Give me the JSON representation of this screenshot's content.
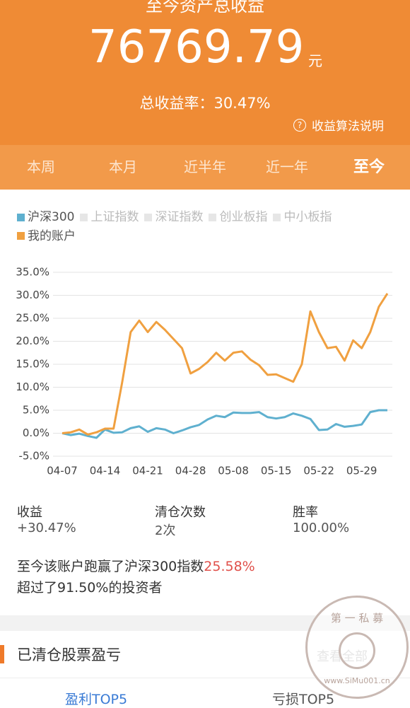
{
  "header": {
    "title": "至今资产总收益",
    "amount": "76769.79",
    "unit": "元",
    "rate": "总收益率：30.47%",
    "help": "收益算法说明"
  },
  "tabs": [
    "本周",
    "本月",
    "近半年",
    "近一年",
    "至今"
  ],
  "chart_data": {
    "type": "line",
    "inactive_series": [
      {
        "name": "上证指数",
        "color": "#e6e6e6"
      },
      {
        "name": "深证指数",
        "color": "#e6e6e6"
      },
      {
        "name": "创业板指",
        "color": "#e6e6e6"
      },
      {
        "name": "中小板指",
        "color": "#e6e6e6"
      }
    ],
    "categories": [
      "04-07",
      null,
      null,
      null,
      null,
      "04-14",
      null,
      null,
      null,
      null,
      "04-21",
      null,
      null,
      null,
      null,
      "04-28",
      null,
      null,
      null,
      null,
      "05-08",
      null,
      null,
      null,
      null,
      "05-15",
      null,
      null,
      null,
      null,
      "05-22",
      null,
      null,
      null,
      null,
      "05-29",
      null,
      null,
      null
    ],
    "series": [
      {
        "name": "沪深300",
        "color": "#5fb0cf",
        "values": [
          0,
          -0.4,
          -0.1,
          -0.6,
          -1.0,
          0.8,
          0.1,
          0.2,
          1.1,
          1.5,
          0.3,
          1.1,
          0.8,
          0,
          0.6,
          1.3,
          1.8,
          3.0,
          3.8,
          3.5,
          4.5,
          4.4,
          4.4,
          4.6,
          3.5,
          3.2,
          3.5,
          4.3,
          3.8,
          3.1,
          0.7,
          0.8,
          2.0,
          1.4,
          1.6,
          1.9,
          4.6,
          5.0,
          5.0
        ]
      },
      {
        "name": "我的账户",
        "color": "#f0a040",
        "values": [
          0,
          0.2,
          0.8,
          -0.3,
          0.2,
          1.0,
          1.0,
          11,
          22,
          24.5,
          22,
          24.2,
          22.5,
          20.5,
          18.5,
          13,
          14,
          15.5,
          17.5,
          15.8,
          17.5,
          17.8,
          16,
          14.8,
          12.7,
          12.8,
          12,
          11.2,
          15,
          26.5,
          22,
          18.5,
          18.8,
          15.8,
          20.2,
          18.5,
          22,
          27.5,
          30.4
        ]
      }
    ],
    "ylim": [
      -5,
      35
    ],
    "yticks": [
      {
        "value": -5,
        "label": "-5.0%"
      },
      {
        "value": 0,
        "label": "0.0%"
      },
      {
        "value": 5,
        "label": "5.0%"
      },
      {
        "value": 10,
        "label": "10.0%"
      },
      {
        "value": 15,
        "label": "15.0%"
      },
      {
        "value": 20,
        "label": "20.0%"
      },
      {
        "value": 25,
        "label": "25.0%"
      },
      {
        "value": 30,
        "label": "30.0%"
      },
      {
        "value": 35,
        "label": "35.0%"
      }
    ],
    "grid": true
  },
  "stats": [
    {
      "label": "收益",
      "value": "+30.47%"
    },
    {
      "label": "清仓次数",
      "value": "2次"
    },
    {
      "label": "胜率",
      "value": "100.00%"
    }
  ],
  "summary": {
    "line1": "至今该账户跑赢了沪深300指数",
    "beat": "25.58%",
    "line2": "超过了91.50%的投资者"
  },
  "section": {
    "title": "已清仓股票盈亏",
    "link": "查看全部",
    "tabs": [
      "盈利TOP5",
      "亏损TOP5"
    ]
  },
  "watermark": {
    "top": "第 一 私 募",
    "url": "www.SiMu001.cn"
  }
}
